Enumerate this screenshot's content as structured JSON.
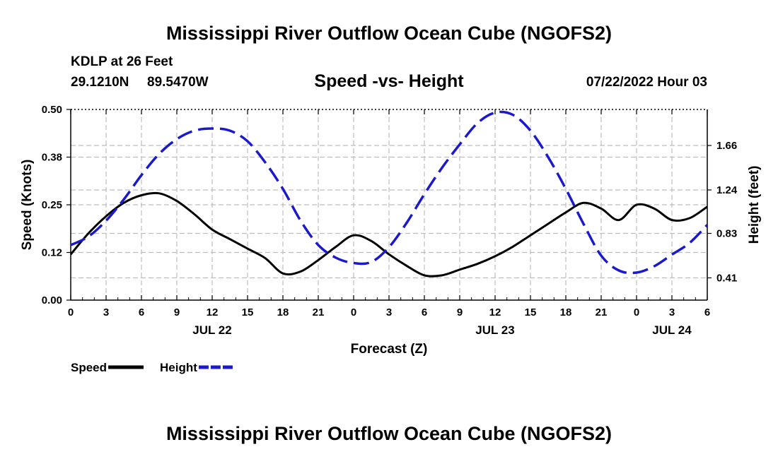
{
  "header": {
    "title": "Mississippi River Outflow Ocean Cube (NGOFS2)",
    "station": "KDLP at 26 Feet",
    "lat": "29.1210N",
    "lon": "89.5470W",
    "date": "07/22/2022 Hour 03"
  },
  "footer": {
    "title": "Mississippi River Outflow Ocean Cube (NGOFS2)"
  },
  "chart_data": {
    "type": "line",
    "title": "Speed -vs- Height",
    "xlabel": "Forecast (Z)",
    "ylabel": "Speed (Knots)",
    "y2label": "Height (feet)",
    "x_range_hours": [
      0,
      54
    ],
    "ylim": [
      0,
      0.5
    ],
    "y2lim": [
      0.2,
      2.0
    ],
    "x_ticks": [
      0,
      3,
      6,
      9,
      12,
      15,
      18,
      21,
      24,
      27,
      30,
      33,
      36,
      39,
      42,
      45,
      48,
      51,
      54
    ],
    "x_tick_labels": [
      "0",
      "3",
      "6",
      "9",
      "12",
      "15",
      "18",
      "21",
      "0",
      "3",
      "6",
      "9",
      "12",
      "15",
      "18",
      "21",
      "0",
      "3",
      "6"
    ],
    "y_ticks": [
      0,
      0.125,
      0.25,
      0.375,
      0.5
    ],
    "y_tick_labels": [
      "0.00",
      "0.12",
      "0.25",
      "0.38",
      "0.50"
    ],
    "y2_ticks": [
      0.41,
      0.83,
      1.24,
      1.66
    ],
    "y2_tick_labels": [
      "0.41",
      "0.83",
      "1.24",
      "1.66"
    ],
    "day_labels": [
      {
        "x": 12,
        "label": "JUL 22"
      },
      {
        "x": 36,
        "label": "JUL 23"
      },
      {
        "x": 51,
        "label": "JUL 24"
      }
    ],
    "grid": true,
    "legend_position": "bottom-left",
    "series": [
      {
        "name": "Speed",
        "axis": "left",
        "color": "#000000",
        "style": "solid",
        "x": [
          0,
          1.5,
          3,
          4.5,
          6,
          7.5,
          9,
          10.5,
          12,
          13.5,
          15,
          16.5,
          18,
          19.5,
          21,
          22.5,
          24,
          25.5,
          27,
          28.5,
          30,
          31.5,
          33,
          34.5,
          36,
          37.5,
          39,
          40.5,
          42,
          43.5,
          45,
          46.5,
          48,
          49.5,
          51,
          52.5,
          54
        ],
        "values": [
          0.12,
          0.175,
          0.22,
          0.255,
          0.275,
          0.28,
          0.26,
          0.225,
          0.185,
          0.16,
          0.135,
          0.11,
          0.07,
          0.075,
          0.105,
          0.14,
          0.17,
          0.155,
          0.12,
          0.09,
          0.065,
          0.065,
          0.08,
          0.095,
          0.115,
          0.14,
          0.17,
          0.2,
          0.23,
          0.255,
          0.24,
          0.21,
          0.25,
          0.24,
          0.21,
          0.215,
          0.245
        ]
      },
      {
        "name": "Height",
        "axis": "right",
        "color": "#1a1acc",
        "style": "dashed",
        "x": [
          0,
          1.5,
          3,
          4.5,
          6,
          7.5,
          9,
          10.5,
          12,
          13.5,
          15,
          16.5,
          18,
          19.5,
          21,
          22.5,
          24,
          25.5,
          27,
          28.5,
          30,
          31.5,
          33,
          34.5,
          36,
          37.5,
          39,
          40.5,
          42,
          43.5,
          45,
          46.5,
          48,
          49.5,
          51,
          52.5,
          54
        ],
        "values": [
          0.72,
          0.8,
          0.95,
          1.15,
          1.38,
          1.58,
          1.72,
          1.8,
          1.82,
          1.8,
          1.7,
          1.5,
          1.25,
          0.95,
          0.72,
          0.6,
          0.55,
          0.56,
          0.7,
          0.93,
          1.2,
          1.45,
          1.67,
          1.87,
          1.97,
          1.95,
          1.8,
          1.55,
          1.25,
          0.92,
          0.62,
          0.48,
          0.46,
          0.52,
          0.63,
          0.74,
          0.91
        ]
      }
    ]
  }
}
